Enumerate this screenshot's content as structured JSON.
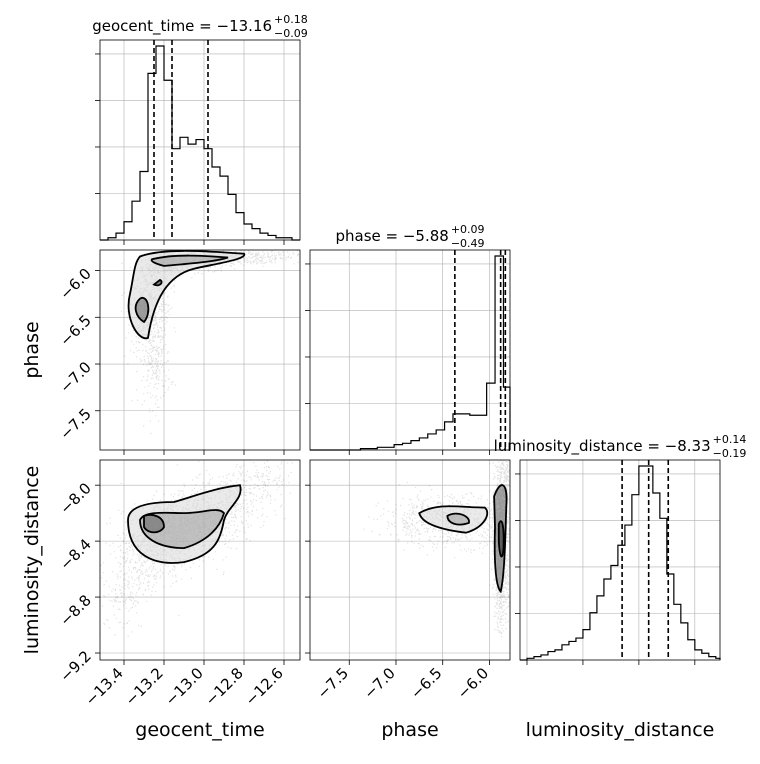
{
  "chart_data": {
    "type": "scatter",
    "plot_kind": "corner",
    "grid": true,
    "parameters": [
      {
        "name": "geocent_time",
        "axis_label": "geocent_time",
        "range": [
          -13.52,
          -12.52
        ],
        "ticks": [
          -13.4,
          -13.2,
          -13.0,
          -12.8,
          -12.6
        ],
        "tick_labels": [
          "−13.4",
          "−13.2",
          "−13.0",
          "−12.8",
          "−12.6"
        ],
        "median": -13.16,
        "plus": "0.18",
        "minus": "0.09",
        "title_main": "geocent_time = −13.16",
        "title_sup": "+0.18",
        "title_sub": "−0.09",
        "quantile_lines": [
          -13.25,
          -13.16,
          -12.98
        ]
      },
      {
        "name": "phase",
        "axis_label": "phase",
        "range": [
          -7.92,
          -5.78
        ],
        "ticks": [
          -7.5,
          -7.0,
          -6.5,
          -6.0
        ],
        "tick_labels": [
          "−7.5",
          "−7.0",
          "−6.5",
          "−6.0"
        ],
        "median": -5.88,
        "plus": "0.09",
        "minus": "0.49",
        "title_main": "phase = −5.88",
        "title_sup": "+0.09",
        "title_sub": "−0.49",
        "quantile_lines": [
          -6.37,
          -5.88,
          -5.83
        ]
      },
      {
        "name": "luminosity_distance",
        "axis_label": "luminosity_distance",
        "range": [
          -9.25,
          -7.82
        ],
        "ticks": [
          -9.2,
          -8.8,
          -8.4,
          -8.0
        ],
        "tick_labels": [
          "−9.2",
          "−8.8",
          "−8.4",
          "−8.0"
        ],
        "median": -8.33,
        "plus": "0.14",
        "minus": "0.19",
        "title_main": "luminosity_distance = −8.33",
        "title_sup": "+0.14",
        "title_sub": "−0.19",
        "quantile_lines": [
          -8.52,
          -8.33,
          -8.19
        ]
      }
    ],
    "histograms": {
      "geocent_time": {
        "bin_edges": [
          -13.52,
          -13.48,
          -13.44,
          -13.4,
          -13.36,
          -13.32,
          -13.28,
          -13.24,
          -13.2,
          -13.16,
          -13.12,
          -13.08,
          -13.04,
          -13.0,
          -12.96,
          -12.92,
          -12.88,
          -12.84,
          -12.8,
          -12.76,
          -12.72,
          -12.68,
          -12.64,
          -12.6,
          -12.56,
          -12.52
        ],
        "counts": [
          0,
          1,
          3,
          8,
          17,
          30,
          73,
          85,
          70,
          40,
          45,
          42,
          44,
          40,
          32,
          28,
          20,
          12,
          7,
          5,
          3,
          2,
          1,
          1,
          0
        ]
      },
      "phase": {
        "bin_edges": [
          -7.92,
          -7.83,
          -7.74,
          -7.65,
          -7.56,
          -7.47,
          -7.38,
          -7.29,
          -7.2,
          -7.11,
          -7.02,
          -6.93,
          -6.84,
          -6.75,
          -6.66,
          -6.57,
          -6.48,
          -6.39,
          -6.3,
          -6.21,
          -6.12,
          -6.03,
          -5.94,
          -5.85,
          -5.78
        ],
        "counts": [
          0,
          0,
          0,
          0,
          0,
          0,
          1,
          1,
          2,
          2,
          4,
          5,
          7,
          9,
          12,
          15,
          21,
          27,
          27,
          26,
          26,
          50,
          145,
          47
        ]
      },
      "luminosity_distance": {
        "bin_edges": [
          -9.25,
          -9.2,
          -9.15,
          -9.1,
          -9.05,
          -9.0,
          -8.95,
          -8.9,
          -8.85,
          -8.8,
          -8.75,
          -8.7,
          -8.65,
          -8.6,
          -8.55,
          -8.5,
          -8.45,
          -8.4,
          -8.35,
          -8.3,
          -8.25,
          -8.2,
          -8.15,
          -8.1,
          -8.05,
          -8.0,
          -7.95,
          -7.9,
          -7.85,
          -7.82
        ],
        "counts": [
          0,
          1,
          2,
          3,
          5,
          6,
          9,
          11,
          13,
          18,
          28,
          38,
          48,
          56,
          68,
          80,
          98,
          115,
          115,
          99,
          84,
          51,
          33,
          22,
          12,
          6,
          4,
          2,
          1
        ]
      }
    },
    "pairs": [
      {
        "x": "geocent_time",
        "y": "phase"
      },
      {
        "x": "geocent_time",
        "y": "luminosity_distance"
      },
      {
        "x": "phase",
        "y": "luminosity_distance"
      }
    ]
  }
}
